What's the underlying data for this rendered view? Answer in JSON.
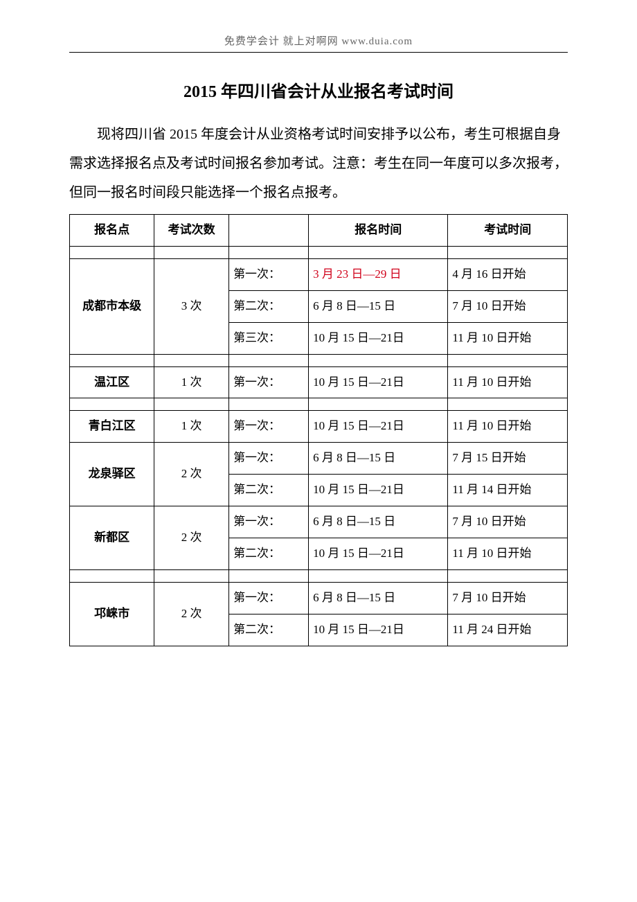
{
  "header_text": "免费学会计 就上对啊网 www.duia.com",
  "title": "2015 年四川省会计从业报名考试时间",
  "intro": "现将四川省 2015 年度会计从业资格考试时间安排予以公布，考生可根据自身需求选择报名点及考试时间报名参加考试。注意：考生在同一年度可以多次报考，但同一报名时间段只能选择一个报名点报考。",
  "table": {
    "type": "table",
    "columns": [
      "报名点",
      "考试次数",
      "",
      "报名时间",
      "考试时间"
    ],
    "column_widths_pct": [
      17,
      15,
      16,
      28,
      24
    ],
    "border_color": "#000000",
    "font_family": "SimSun",
    "font_size_pt": 12,
    "red_color": "#d0021b",
    "rows": [
      {
        "location": "成都市本级",
        "count": "3 次",
        "entries": [
          {
            "seq": "第一次：",
            "reg": "3 月 23 日—29 日",
            "reg_red": true,
            "exam": "4 月 16 日开始"
          },
          {
            "seq": "第二次：",
            "reg": "6 月 8 日—15 日",
            "exam": "7 月 10 日开始"
          },
          {
            "seq": "第三次：",
            "reg": "10 月 15 日—21日",
            "exam": "11 月 10 日开始"
          }
        ]
      },
      {
        "location": "温江区",
        "count": "1 次",
        "entries": [
          {
            "seq": "第一次：",
            "reg": "10 月 15 日—21日",
            "exam": "11 月 10 日开始"
          }
        ]
      },
      {
        "location": "青白江区",
        "count": "1 次",
        "entries": [
          {
            "seq": "第一次：",
            "reg": "10 月 15 日—21日",
            "exam": "11 月 10 日开始"
          }
        ]
      },
      {
        "location": "龙泉驿区",
        "count": "2 次",
        "no_leading_spacer": true,
        "entries": [
          {
            "seq": "第一次：",
            "reg": "6 月 8 日—15 日",
            "exam": "7 月 15 日开始"
          },
          {
            "seq": "第二次：",
            "reg": "10 月 15 日—21日",
            "exam": "11 月 14 日开始"
          }
        ]
      },
      {
        "location": "新都区",
        "count": "2 次",
        "no_leading_spacer": true,
        "entries": [
          {
            "seq": "第一次：",
            "reg": "6 月 8 日—15 日",
            "exam": "7 月 10 日开始"
          },
          {
            "seq": "第二次：",
            "reg": "10 月 15 日—21日",
            "exam": "11 月 10 日开始"
          }
        ]
      },
      {
        "location": "邛崃市",
        "count": "2 次",
        "entries": [
          {
            "seq": "第一次：",
            "reg": "6 月 8 日—15 日",
            "exam": "7 月 10 日开始"
          },
          {
            "seq": "第二次：",
            "reg": "10 月 15 日—21日",
            "exam": "11 月 24 日开始"
          }
        ]
      }
    ]
  }
}
